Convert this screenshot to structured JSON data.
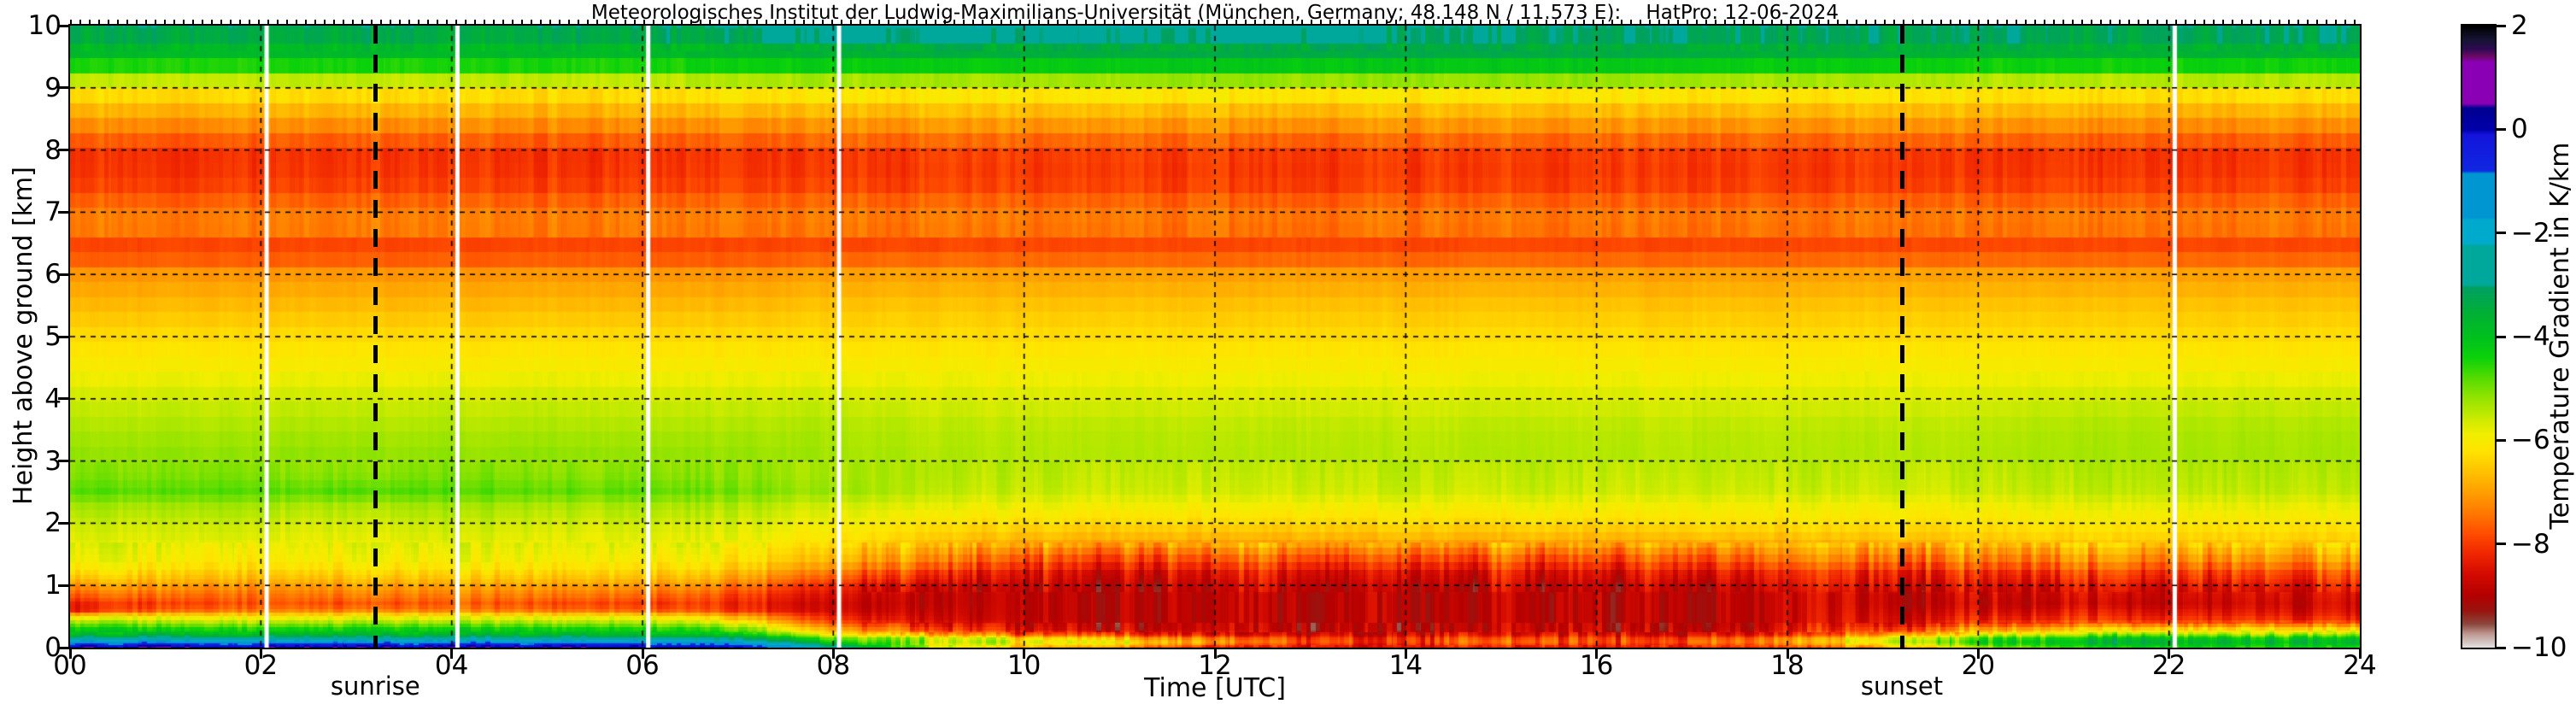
{
  "chart_data": {
    "type": "heatmap",
    "title": "Meteorologisches Institut der Ludwig-Maximilians-Universität (München, Germany; 48.148 N / 11.573 E):    HatPro: 12-06-2024",
    "xlabel": "Time [UTC]",
    "ylabel": "Height above ground [km]",
    "xlim": [
      0,
      24
    ],
    "ylim": [
      0,
      10
    ],
    "grid": {
      "x_every_hours": 2,
      "y_every_km": 1,
      "style": "dashed"
    },
    "x_tick_values": [
      0,
      2,
      4,
      6,
      8,
      10,
      12,
      14,
      16,
      18,
      20,
      22,
      24
    ],
    "x_tick_labels": [
      "00",
      "02",
      "04",
      "06",
      "08",
      "10",
      "12",
      "14",
      "16",
      "18",
      "20",
      "22",
      "24"
    ],
    "y_tick_values": [
      0,
      1,
      2,
      3,
      4,
      5,
      6,
      7,
      8,
      9,
      10
    ],
    "y_tick_labels": [
      "0",
      "1",
      "2",
      "3",
      "4",
      "5",
      "6",
      "7",
      "8",
      "9",
      "10"
    ],
    "annotations": {
      "sunrise": {
        "label": "sunrise",
        "time_utc": 3.2
      },
      "sunset": {
        "label": "sunset",
        "time_utc": 19.2
      }
    },
    "data_gaps_utc": [
      2.06,
      4.06,
      6.06,
      8.06,
      22.06
    ],
    "colorbar": {
      "label": "Temperature Gradient in K/km",
      "vmin": -10,
      "vmax": 2,
      "tick_values": [
        2,
        0,
        -2,
        -4,
        -6,
        -8,
        -10
      ],
      "tick_labels": [
        "2",
        "0",
        "−2",
        "−4",
        "−6",
        "−8",
        "−10"
      ],
      "stops": [
        [
          -10.0,
          "#e0e0e0"
        ],
        [
          -9.75,
          "#c09a92"
        ],
        [
          -9.55,
          "#8a463c"
        ],
        [
          -9.3,
          "#9a1410"
        ],
        [
          -9.0,
          "#b40000"
        ],
        [
          -8.6,
          "#d20a00"
        ],
        [
          -8.2,
          "#f02600"
        ],
        [
          -7.8,
          "#ff4e00"
        ],
        [
          -7.4,
          "#ff7a00"
        ],
        [
          -7.0,
          "#ffa000"
        ],
        [
          -6.6,
          "#ffc300"
        ],
        [
          -6.2,
          "#ffe400"
        ],
        [
          -5.9,
          "#f2ee00"
        ],
        [
          -5.6,
          "#cdeb00"
        ],
        [
          -5.2,
          "#96e400"
        ],
        [
          -4.8,
          "#55dc00"
        ],
        [
          -4.4,
          "#0ad20a"
        ],
        [
          -4.0,
          "#00c01e"
        ],
        [
          -3.6,
          "#00b232"
        ],
        [
          -3.3,
          "#00a84b"
        ],
        [
          -3.05,
          "#00a062"
        ],
        [
          -3.0,
          "#00a89b"
        ],
        [
          -2.25,
          "#00a89b"
        ],
        [
          -2.2,
          "#00aacd"
        ],
        [
          -1.75,
          "#00aacd"
        ],
        [
          -1.7,
          "#0096d2"
        ],
        [
          -0.85,
          "#0096d2"
        ],
        [
          -0.8,
          "#0f28e0"
        ],
        [
          -0.1,
          "#1414dc"
        ],
        [
          0.0,
          "#0000aa"
        ],
        [
          0.42,
          "#000090"
        ],
        [
          0.5,
          "#8a00b4"
        ],
        [
          1.3,
          "#8a00b4"
        ],
        [
          1.42,
          "#6a0a64"
        ],
        [
          1.55,
          "#2e0a52"
        ],
        [
          1.75,
          "#141430"
        ],
        [
          2.0,
          "#000000"
        ]
      ]
    },
    "grid_times_utc": [
      0,
      1,
      2,
      3,
      4,
      5,
      6,
      7,
      8,
      9,
      10,
      11,
      12,
      13,
      14,
      15,
      16,
      17,
      18,
      19,
      20,
      21,
      22,
      23,
      24
    ],
    "grid_heights_km": [
      0.0,
      0.05,
      0.1,
      0.15,
      0.2,
      0.3,
      0.4,
      0.5,
      0.6,
      0.7,
      0.85,
      1.0,
      1.2,
      1.4,
      1.7,
      2.0,
      2.3,
      2.5,
      2.8,
      3.2,
      3.6,
      4.0,
      4.5,
      5.0,
      5.5,
      6.0,
      6.3,
      6.5,
      6.8,
      7.1,
      7.5,
      7.9,
      8.2,
      8.5,
      8.8,
      9.0,
      9.2,
      9.4,
      9.6,
      9.8,
      10.0
    ],
    "values_K_per_km": [
      [
        0.3,
        -0.4,
        -1.3,
        -2.6,
        -3.6,
        -4.4,
        -5.2,
        -6.2,
        -8.4,
        -8.5,
        -7.8,
        -7.2,
        -6.4,
        -6.0,
        -5.8,
        -5.6,
        -5.3,
        -4.8,
        -5.1,
        -5.2,
        -5.4,
        -5.6,
        -6.0,
        -6.3,
        -6.7,
        -7.1,
        -7.8,
        -7.9,
        -7.2,
        -7.5,
        -8.0,
        -8.1,
        -7.6,
        -7.0,
        -6.5,
        -6.0,
        -5.2,
        -4.3,
        -3.8,
        -3.4,
        -3.2
      ],
      [
        0.3,
        -0.4,
        -1.3,
        -2.6,
        -3.6,
        -4.4,
        -5.2,
        -6.0,
        -7.5,
        -8.0,
        -7.5,
        -7.0,
        -6.4,
        -6.0,
        -5.8,
        -5.6,
        -5.3,
        -4.8,
        -5.1,
        -5.2,
        -5.4,
        -5.6,
        -6.0,
        -6.3,
        -6.7,
        -7.1,
        -7.8,
        -7.9,
        -7.2,
        -7.5,
        -8.0,
        -8.1,
        -7.6,
        -7.0,
        -6.5,
        -6.0,
        -5.2,
        -4.3,
        -3.8,
        -3.4,
        -3.2
      ],
      [
        0.3,
        -0.4,
        -1.3,
        -2.6,
        -3.6,
        -4.4,
        -5.2,
        -6.0,
        -7.2,
        -7.7,
        -7.4,
        -7.0,
        -6.4,
        -6.0,
        -5.8,
        -5.6,
        -5.3,
        -4.8,
        -5.1,
        -5.2,
        -5.4,
        -5.6,
        -6.0,
        -6.3,
        -6.7,
        -7.1,
        -7.8,
        -7.9,
        -7.2,
        -7.5,
        -8.0,
        -8.1,
        -7.6,
        -7.0,
        -6.5,
        -6.0,
        -5.2,
        -4.3,
        -3.8,
        -3.4,
        -3.2
      ],
      [
        0.3,
        -0.4,
        -1.3,
        -2.6,
        -3.6,
        -4.4,
        -5.2,
        -6.0,
        -7.3,
        -7.9,
        -7.4,
        -7.0,
        -6.4,
        -6.0,
        -5.8,
        -5.6,
        -5.3,
        -4.7,
        -5.1,
        -5.2,
        -5.4,
        -5.6,
        -6.0,
        -6.3,
        -6.7,
        -7.1,
        -7.8,
        -7.9,
        -7.2,
        -7.5,
        -8.0,
        -8.1,
        -7.6,
        -7.0,
        -6.5,
        -6.0,
        -5.2,
        -4.3,
        -3.8,
        -3.4,
        -3.2
      ],
      [
        0.3,
        -0.4,
        -1.3,
        -2.6,
        -3.6,
        -4.4,
        -5.2,
        -6.0,
        -7.3,
        -7.8,
        -7.4,
        -7.0,
        -6.4,
        -6.0,
        -5.8,
        -5.6,
        -5.3,
        -4.8,
        -5.1,
        -5.2,
        -5.4,
        -5.6,
        -6.0,
        -6.3,
        -6.7,
        -7.1,
        -7.8,
        -7.9,
        -7.2,
        -7.5,
        -8.0,
        -8.1,
        -7.6,
        -7.0,
        -6.5,
        -6.0,
        -5.2,
        -4.3,
        -3.8,
        -3.4,
        -3.2
      ],
      [
        0.3,
        -0.4,
        -1.3,
        -2.6,
        -3.6,
        -4.4,
        -5.2,
        -6.0,
        -7.4,
        -7.9,
        -7.4,
        -7.0,
        -6.4,
        -6.0,
        -5.8,
        -5.6,
        -5.3,
        -4.8,
        -5.1,
        -5.2,
        -5.4,
        -5.6,
        -6.0,
        -6.3,
        -6.7,
        -7.1,
        -7.8,
        -7.9,
        -7.2,
        -7.5,
        -8.0,
        -8.1,
        -7.6,
        -7.0,
        -6.5,
        -6.0,
        -5.2,
        -4.3,
        -3.8,
        -3.4,
        -3.2
      ],
      [
        0.2,
        -0.5,
        -1.4,
        -2.7,
        -3.7,
        -4.5,
        -5.3,
        -6.1,
        -7.6,
        -8.1,
        -7.6,
        -7.1,
        -6.5,
        -6.1,
        -5.8,
        -5.6,
        -5.3,
        -4.8,
        -5.1,
        -5.2,
        -5.4,
        -5.6,
        -6.0,
        -6.3,
        -6.7,
        -7.1,
        -7.8,
        -7.9,
        -7.2,
        -7.5,
        -8.0,
        -8.1,
        -7.6,
        -7.0,
        -6.5,
        -6.0,
        -5.2,
        -4.3,
        -3.8,
        -3.3,
        -3.1
      ],
      [
        0.0,
        -0.8,
        -1.8,
        -3.0,
        -4.0,
        -4.9,
        -5.8,
        -6.8,
        -8.0,
        -8.2,
        -7.9,
        -7.4,
        -6.7,
        -6.2,
        -5.9,
        -5.7,
        -5.4,
        -5.0,
        -5.2,
        -5.2,
        -5.4,
        -5.6,
        -6.0,
        -6.3,
        -6.7,
        -7.1,
        -7.8,
        -7.9,
        -7.3,
        -7.5,
        -8.0,
        -8.1,
        -7.6,
        -7.0,
        -6.4,
        -5.9,
        -5.1,
        -4.2,
        -3.7,
        -3.2,
        -2.9
      ],
      [
        -2.5,
        -3.5,
        -4.3,
        -4.8,
        -5.8,
        -7.0,
        -7.8,
        -8.3,
        -8.6,
        -8.7,
        -8.5,
        -8.2,
        -7.4,
        -6.7,
        -6.2,
        -5.9,
        -5.6,
        -5.2,
        -5.3,
        -5.3,
        -5.4,
        -5.6,
        -6.0,
        -6.3,
        -6.6,
        -7.0,
        -7.7,
        -7.9,
        -7.3,
        -7.5,
        -8.0,
        -8.1,
        -7.5,
        -7.0,
        -6.4,
        -5.8,
        -5.0,
        -4.1,
        -3.6,
        -2.9,
        -2.5
      ],
      [
        -5.5,
        -5.8,
        -5.4,
        -5.6,
        -6.8,
        -8.0,
        -8.5,
        -8.7,
        -8.8,
        -8.9,
        -8.9,
        -8.7,
        -8.1,
        -7.3,
        -6.6,
        -6.2,
        -5.8,
        -5.5,
        -5.4,
        -5.4,
        -5.5,
        -5.7,
        -6.0,
        -6.3,
        -6.6,
        -7.0,
        -7.7,
        -7.9,
        -7.3,
        -7.5,
        -8.0,
        -8.0,
        -7.5,
        -6.9,
        -6.4,
        -5.8,
        -5.0,
        -4.1,
        -3.5,
        -2.9,
        -2.5
      ],
      [
        -7.0,
        -6.2,
        -5.8,
        -6.2,
        -7.6,
        -8.6,
        -8.8,
        -8.9,
        -8.9,
        -8.9,
        -8.9,
        -8.8,
        -8.5,
        -7.9,
        -6.9,
        -6.3,
        -5.9,
        -5.6,
        -5.5,
        -5.4,
        -5.5,
        -5.7,
        -6.0,
        -6.3,
        -6.6,
        -7.0,
        -7.7,
        -7.9,
        -7.3,
        -7.5,
        -8.0,
        -8.0,
        -7.5,
        -6.9,
        -6.4,
        -5.8,
        -5.0,
        -4.1,
        -3.5,
        -2.9,
        -2.5
      ],
      [
        -7.5,
        -6.5,
        -6.2,
        -6.8,
        -8.0,
        -8.8,
        -8.9,
        -8.9,
        -8.9,
        -8.9,
        -8.9,
        -8.8,
        -8.5,
        -7.9,
        -6.9,
        -6.3,
        -5.9,
        -5.6,
        -5.5,
        -5.4,
        -5.5,
        -5.7,
        -6.0,
        -6.3,
        -6.6,
        -7.0,
        -7.7,
        -7.9,
        -7.3,
        -7.5,
        -8.0,
        -8.0,
        -7.5,
        -6.9,
        -6.4,
        -5.7,
        -4.9,
        -4.0,
        -3.4,
        -2.9,
        -2.5
      ],
      [
        -8.3,
        -7.5,
        -7.0,
        -7.4,
        -8.4,
        -8.9,
        -8.9,
        -8.9,
        -8.9,
        -8.9,
        -8.9,
        -8.8,
        -8.5,
        -7.9,
        -6.9,
        -6.3,
        -5.9,
        -5.6,
        -5.5,
        -5.4,
        -5.5,
        -5.7,
        -6.0,
        -6.3,
        -6.6,
        -7.0,
        -7.7,
        -7.9,
        -7.3,
        -7.5,
        -8.0,
        -8.0,
        -7.5,
        -6.9,
        -6.4,
        -5.7,
        -4.9,
        -4.0,
        -3.4,
        -2.9,
        -2.5
      ],
      [
        -8.6,
        -8.2,
        -7.8,
        -8.0,
        -8.6,
        -8.9,
        -8.9,
        -8.9,
        -8.9,
        -8.9,
        -8.9,
        -8.8,
        -8.5,
        -7.9,
        -6.9,
        -6.3,
        -5.9,
        -5.6,
        -5.5,
        -5.4,
        -5.5,
        -5.7,
        -6.0,
        -6.3,
        -6.6,
        -7.0,
        -7.7,
        -7.9,
        -7.3,
        -7.5,
        -8.0,
        -8.0,
        -7.5,
        -6.9,
        -6.4,
        -5.7,
        -4.9,
        -4.0,
        -3.4,
        -2.9,
        -2.6
      ],
      [
        -8.6,
        -8.3,
        -8.0,
        -8.1,
        -8.6,
        -8.9,
        -8.9,
        -8.9,
        -8.9,
        -8.9,
        -8.9,
        -8.8,
        -8.5,
        -7.9,
        -6.9,
        -6.3,
        -5.9,
        -5.6,
        -5.5,
        -5.4,
        -5.5,
        -5.7,
        -6.0,
        -6.3,
        -6.6,
        -7.0,
        -7.7,
        -7.9,
        -7.3,
        -7.5,
        -8.0,
        -8.0,
        -7.5,
        -6.9,
        -6.4,
        -5.7,
        -4.9,
        -4.0,
        -3.4,
        -3.1,
        -3.0
      ],
      [
        -8.4,
        -8.0,
        -7.6,
        -7.9,
        -8.6,
        -8.9,
        -8.9,
        -8.9,
        -8.9,
        -8.9,
        -8.9,
        -8.8,
        -8.5,
        -7.9,
        -6.9,
        -6.3,
        -5.9,
        -5.6,
        -5.5,
        -5.4,
        -5.5,
        -5.7,
        -6.0,
        -6.3,
        -6.6,
        -7.0,
        -7.7,
        -7.9,
        -7.3,
        -7.5,
        -8.0,
        -8.0,
        -7.5,
        -6.9,
        -6.4,
        -5.7,
        -4.9,
        -4.0,
        -3.4,
        -3.1,
        -3.0
      ],
      [
        -8.6,
        -8.3,
        -8.0,
        -8.1,
        -8.6,
        -8.9,
        -8.9,
        -8.9,
        -8.9,
        -8.9,
        -8.9,
        -8.8,
        -8.5,
        -7.9,
        -6.9,
        -6.3,
        -5.9,
        -5.6,
        -5.5,
        -5.4,
        -5.5,
        -5.7,
        -6.0,
        -6.3,
        -6.6,
        -7.0,
        -7.7,
        -7.9,
        -7.3,
        -7.5,
        -8.0,
        -8.0,
        -7.5,
        -6.9,
        -6.4,
        -5.7,
        -4.9,
        -4.0,
        -3.4,
        -3.1,
        -3.0
      ],
      [
        -8.4,
        -7.9,
        -7.5,
        -7.8,
        -8.5,
        -8.8,
        -8.9,
        -8.9,
        -8.9,
        -8.9,
        -8.9,
        -8.8,
        -8.4,
        -7.8,
        -6.8,
        -6.2,
        -5.9,
        -5.6,
        -5.5,
        -5.4,
        -5.5,
        -5.7,
        -6.0,
        -6.3,
        -6.6,
        -7.0,
        -7.7,
        -7.9,
        -7.3,
        -7.5,
        -8.0,
        -8.0,
        -7.5,
        -6.9,
        -6.4,
        -5.8,
        -5.0,
        -4.1,
        -3.5,
        -3.1,
        -3.0
      ],
      [
        -8.0,
        -7.5,
        -7.1,
        -7.3,
        -8.2,
        -8.7,
        -8.8,
        -8.8,
        -8.8,
        -8.8,
        -8.8,
        -8.6,
        -8.3,
        -7.6,
        -6.8,
        -6.2,
        -5.9,
        -5.6,
        -5.5,
        -5.4,
        -5.5,
        -5.7,
        -6.0,
        -6.3,
        -6.6,
        -7.0,
        -7.7,
        -7.9,
        -7.3,
        -7.5,
        -8.0,
        -8.0,
        -7.5,
        -6.9,
        -6.4,
        -5.8,
        -5.0,
        -4.1,
        -3.5,
        -3.2,
        -3.1
      ],
      [
        -7.2,
        -6.2,
        -5.6,
        -5.9,
        -7.0,
        -8.0,
        -8.5,
        -8.6,
        -8.7,
        -8.8,
        -8.8,
        -8.5,
        -8.2,
        -7.5,
        -6.7,
        -6.2,
        -5.9,
        -5.6,
        -5.5,
        -5.4,
        -5.5,
        -5.7,
        -6.0,
        -6.3,
        -6.6,
        -7.0,
        -7.7,
        -7.9,
        -7.3,
        -7.5,
        -8.0,
        -8.0,
        -7.5,
        -6.9,
        -6.4,
        -5.8,
        -5.0,
        -4.1,
        -3.5,
        -3.2,
        -3.1
      ],
      [
        -5.5,
        -4.6,
        -4.2,
        -4.6,
        -5.6,
        -7.0,
        -8.0,
        -8.4,
        -8.6,
        -8.8,
        -8.7,
        -8.5,
        -8.1,
        -7.4,
        -6.6,
        -6.2,
        -5.9,
        -5.6,
        -5.5,
        -5.4,
        -5.5,
        -5.7,
        -6.0,
        -6.3,
        -6.6,
        -7.0,
        -7.7,
        -7.9,
        -7.3,
        -7.5,
        -8.0,
        -8.1,
        -7.5,
        -6.9,
        -6.4,
        -5.9,
        -5.1,
        -4.2,
        -3.6,
        -3.2,
        -3.1
      ],
      [
        -4.6,
        -4.1,
        -3.8,
        -4.2,
        -5.1,
        -6.6,
        -7.8,
        -8.3,
        -8.5,
        -8.8,
        -8.7,
        -8.5,
        -8.0,
        -7.3,
        -6.5,
        -6.1,
        -5.8,
        -5.5,
        -5.4,
        -5.3,
        -5.4,
        -5.6,
        -6.0,
        -6.3,
        -6.6,
        -7.0,
        -7.7,
        -7.9,
        -7.3,
        -7.5,
        -8.0,
        -8.1,
        -7.6,
        -7.0,
        -6.5,
        -5.9,
        -5.1,
        -4.2,
        -3.6,
        -3.3,
        -3.2
      ],
      [
        -4.4,
        -4.0,
        -3.7,
        -4.1,
        -5.0,
        -6.5,
        -7.8,
        -8.3,
        -8.5,
        -8.8,
        -8.7,
        -8.5,
        -8.0,
        -7.3,
        -6.5,
        -6.1,
        -5.8,
        -5.5,
        -5.4,
        -5.3,
        -5.4,
        -5.6,
        -6.0,
        -6.3,
        -6.6,
        -7.0,
        -7.7,
        -7.9,
        -7.3,
        -7.5,
        -8.0,
        -8.1,
        -7.6,
        -7.0,
        -6.5,
        -5.9,
        -5.1,
        -4.2,
        -3.6,
        -3.2,
        -3.1
      ],
      [
        -4.4,
        -4.0,
        -3.7,
        -4.1,
        -5.0,
        -6.5,
        -7.8,
        -8.4,
        -8.6,
        -8.8,
        -8.7,
        -8.5,
        -8.0,
        -7.3,
        -6.5,
        -6.1,
        -5.8,
        -5.5,
        -5.4,
        -5.3,
        -5.4,
        -5.6,
        -6.0,
        -6.3,
        -6.6,
        -7.0,
        -7.7,
        -7.9,
        -7.3,
        -7.5,
        -8.0,
        -8.1,
        -7.6,
        -7.0,
        -6.5,
        -5.9,
        -5.1,
        -4.2,
        -3.6,
        -3.2,
        -3.1
      ],
      [
        -4.5,
        -4.1,
        -3.8,
        -4.2,
        -5.1,
        -6.6,
        -7.9,
        -8.5,
        -8.7,
        -8.8,
        -8.7,
        -8.5,
        -8.0,
        -7.3,
        -6.5,
        -6.1,
        -5.8,
        -5.5,
        -5.4,
        -5.3,
        -5.4,
        -5.6,
        -6.0,
        -6.3,
        -6.6,
        -7.0,
        -7.7,
        -7.9,
        -7.3,
        -7.5,
        -8.0,
        -8.1,
        -7.6,
        -7.0,
        -6.5,
        -5.9,
        -5.1,
        -4.2,
        -3.6,
        -3.2,
        -3.1
      ]
    ]
  }
}
